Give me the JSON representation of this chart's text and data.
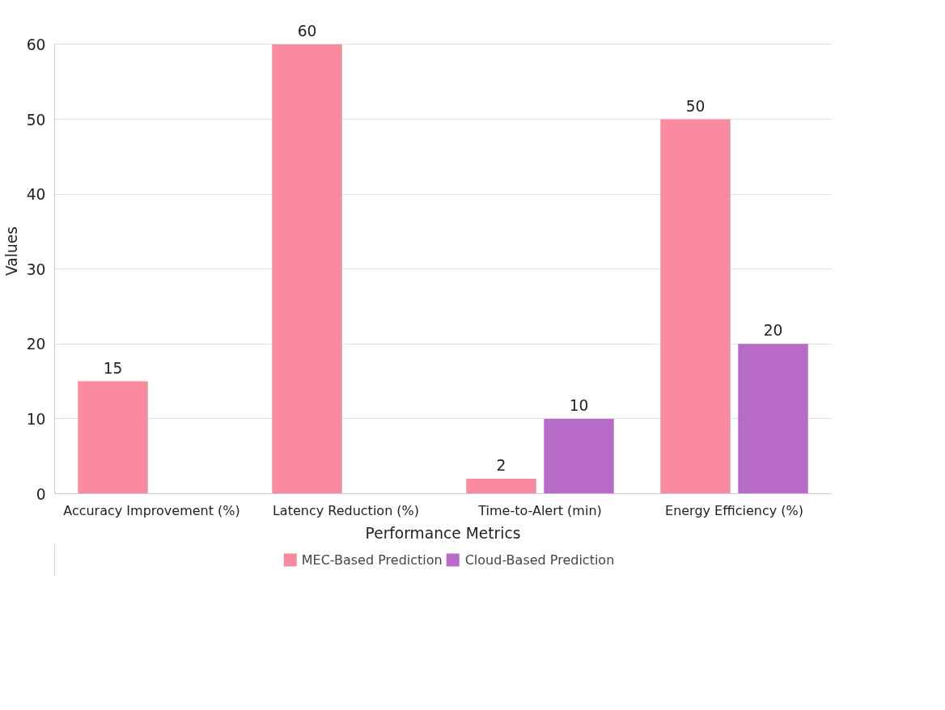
{
  "chart_data": {
    "type": "bar",
    "xlabel": "Performance Metrics",
    "ylabel": "Values",
    "categories": [
      "Accuracy Improvement (%)",
      "Latency Reduction (%)",
      "Time-to-Alert (min)",
      "Energy Efficiency (%)"
    ],
    "series": [
      {
        "name": "MEC-Based Prediction",
        "color": "#f98a9f",
        "values": [
          15,
          60,
          2,
          50
        ]
      },
      {
        "name": "Cloud-Based Prediction",
        "color": "#b86bc6",
        "values": [
          null,
          null,
          10,
          20
        ]
      }
    ],
    "ylim": [
      0,
      60
    ],
    "yticks": [
      0,
      10,
      20,
      30,
      40,
      50,
      60
    ],
    "grid": "y",
    "legend": "bottom",
    "data_labels": true
  }
}
